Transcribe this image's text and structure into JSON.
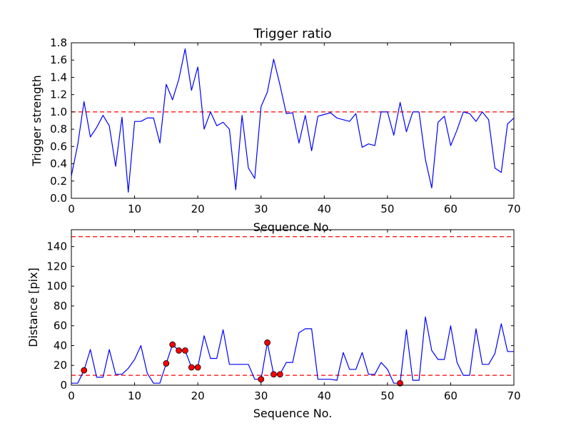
{
  "chart_data": [
    {
      "type": "line",
      "title": "Trigger ratio",
      "xlabel": "Sequence No.",
      "ylabel": "Trigger strength",
      "xlim": [
        0,
        70
      ],
      "ylim": [
        0.0,
        1.8
      ],
      "xticks": [
        "0",
        "10",
        "20",
        "30",
        "40",
        "50",
        "60",
        "70"
      ],
      "yticks": [
        "0.0",
        "0.2",
        "0.4",
        "0.6",
        "0.8",
        "1.0",
        "1.2",
        "1.4",
        "1.6",
        "1.8"
      ],
      "grid": false,
      "reference_lines": [
        {
          "y": 1.0,
          "color": "#ff0000",
          "style": "dashed"
        }
      ],
      "series": [
        {
          "color": "#0000ff",
          "x": [
            0,
            1,
            2,
            3,
            4,
            5,
            6,
            7,
            8,
            9,
            10,
            11,
            12,
            13,
            14,
            15,
            16,
            17,
            18,
            19,
            20,
            21,
            22,
            23,
            24,
            25,
            26,
            27,
            28,
            29,
            30,
            31,
            32,
            33,
            34,
            35,
            36,
            37,
            38,
            39,
            40,
            41,
            42,
            43,
            44,
            45,
            46,
            47,
            48,
            49,
            50,
            51,
            52,
            53,
            54,
            55,
            56,
            57,
            58,
            59,
            60,
            61,
            62,
            63,
            64,
            65,
            66,
            67,
            68,
            69,
            70
          ],
          "y": [
            0.26,
            0.62,
            1.12,
            0.71,
            0.82,
            0.96,
            0.84,
            0.37,
            0.94,
            0.07,
            0.89,
            0.89,
            0.93,
            0.93,
            0.64,
            1.32,
            1.14,
            1.38,
            1.73,
            1.25,
            1.52,
            0.8,
            1.0,
            0.84,
            0.88,
            0.8,
            0.1,
            0.96,
            0.35,
            0.23,
            1.06,
            1.23,
            1.61,
            1.31,
            0.98,
            0.99,
            0.64,
            0.96,
            0.55,
            0.95,
            0.97,
            0.99,
            0.93,
            0.91,
            0.89,
            0.98,
            0.59,
            0.63,
            0.61,
            1.0,
            1.0,
            0.73,
            1.11,
            0.77,
            1.0,
            1.0,
            0.45,
            0.12,
            0.88,
            0.95,
            0.61,
            0.79,
            1.0,
            0.98,
            0.89,
            1.0,
            0.91,
            0.35,
            0.3,
            0.86,
            0.93
          ]
        }
      ]
    },
    {
      "type": "line",
      "title": "",
      "xlabel": "Sequence No.",
      "ylabel": "Distance [pix]",
      "xlim": [
        0,
        70
      ],
      "ylim": [
        0,
        157
      ],
      "xticks": [
        "0",
        "10",
        "20",
        "30",
        "40",
        "50",
        "60",
        "70"
      ],
      "yticks": [
        "0",
        "20",
        "40",
        "60",
        "80",
        "100",
        "120",
        "140"
      ],
      "grid": false,
      "reference_lines": [
        {
          "y": 150,
          "color": "#ff0000",
          "style": "dashed"
        },
        {
          "y": 10,
          "color": "#ff0000",
          "style": "dashed"
        }
      ],
      "series": [
        {
          "color": "#0000ff",
          "x": [
            0,
            1,
            2,
            3,
            4,
            5,
            6,
            7,
            8,
            9,
            10,
            11,
            12,
            13,
            14,
            15,
            16,
            17,
            18,
            19,
            20,
            21,
            22,
            23,
            24,
            25,
            26,
            27,
            28,
            29,
            30,
            31,
            32,
            33,
            34,
            35,
            36,
            37,
            38,
            39,
            40,
            41,
            42,
            43,
            44,
            45,
            46,
            47,
            48,
            49,
            50,
            51,
            52,
            53,
            54,
            55,
            56,
            57,
            58,
            59,
            60,
            61,
            62,
            63,
            64,
            65,
            66,
            67,
            68,
            69,
            70
          ],
          "y": [
            2,
            2,
            15,
            36,
            8,
            8,
            36,
            11,
            11,
            17,
            26,
            40,
            12,
            2,
            2,
            22,
            41,
            35,
            35,
            18,
            18,
            50,
            27,
            27,
            56,
            21,
            21,
            21,
            21,
            6,
            6,
            43,
            11,
            11,
            23,
            23,
            53,
            57,
            57,
            6,
            6,
            6,
            5,
            33,
            16,
            16,
            33,
            11,
            11,
            23,
            16,
            2,
            2,
            56,
            5,
            5,
            69,
            35,
            26,
            26,
            60,
            23,
            10,
            10,
            57,
            21,
            21,
            32,
            62,
            34,
            34
          ]
        }
      ],
      "markers": {
        "color": "#ff0000",
        "x": [
          2,
          15,
          16,
          17,
          18,
          19,
          20,
          30,
          31,
          32,
          33,
          52
        ],
        "y": [
          15,
          22,
          41,
          35,
          35,
          18,
          18,
          6,
          43,
          11,
          11,
          2
        ]
      }
    }
  ]
}
